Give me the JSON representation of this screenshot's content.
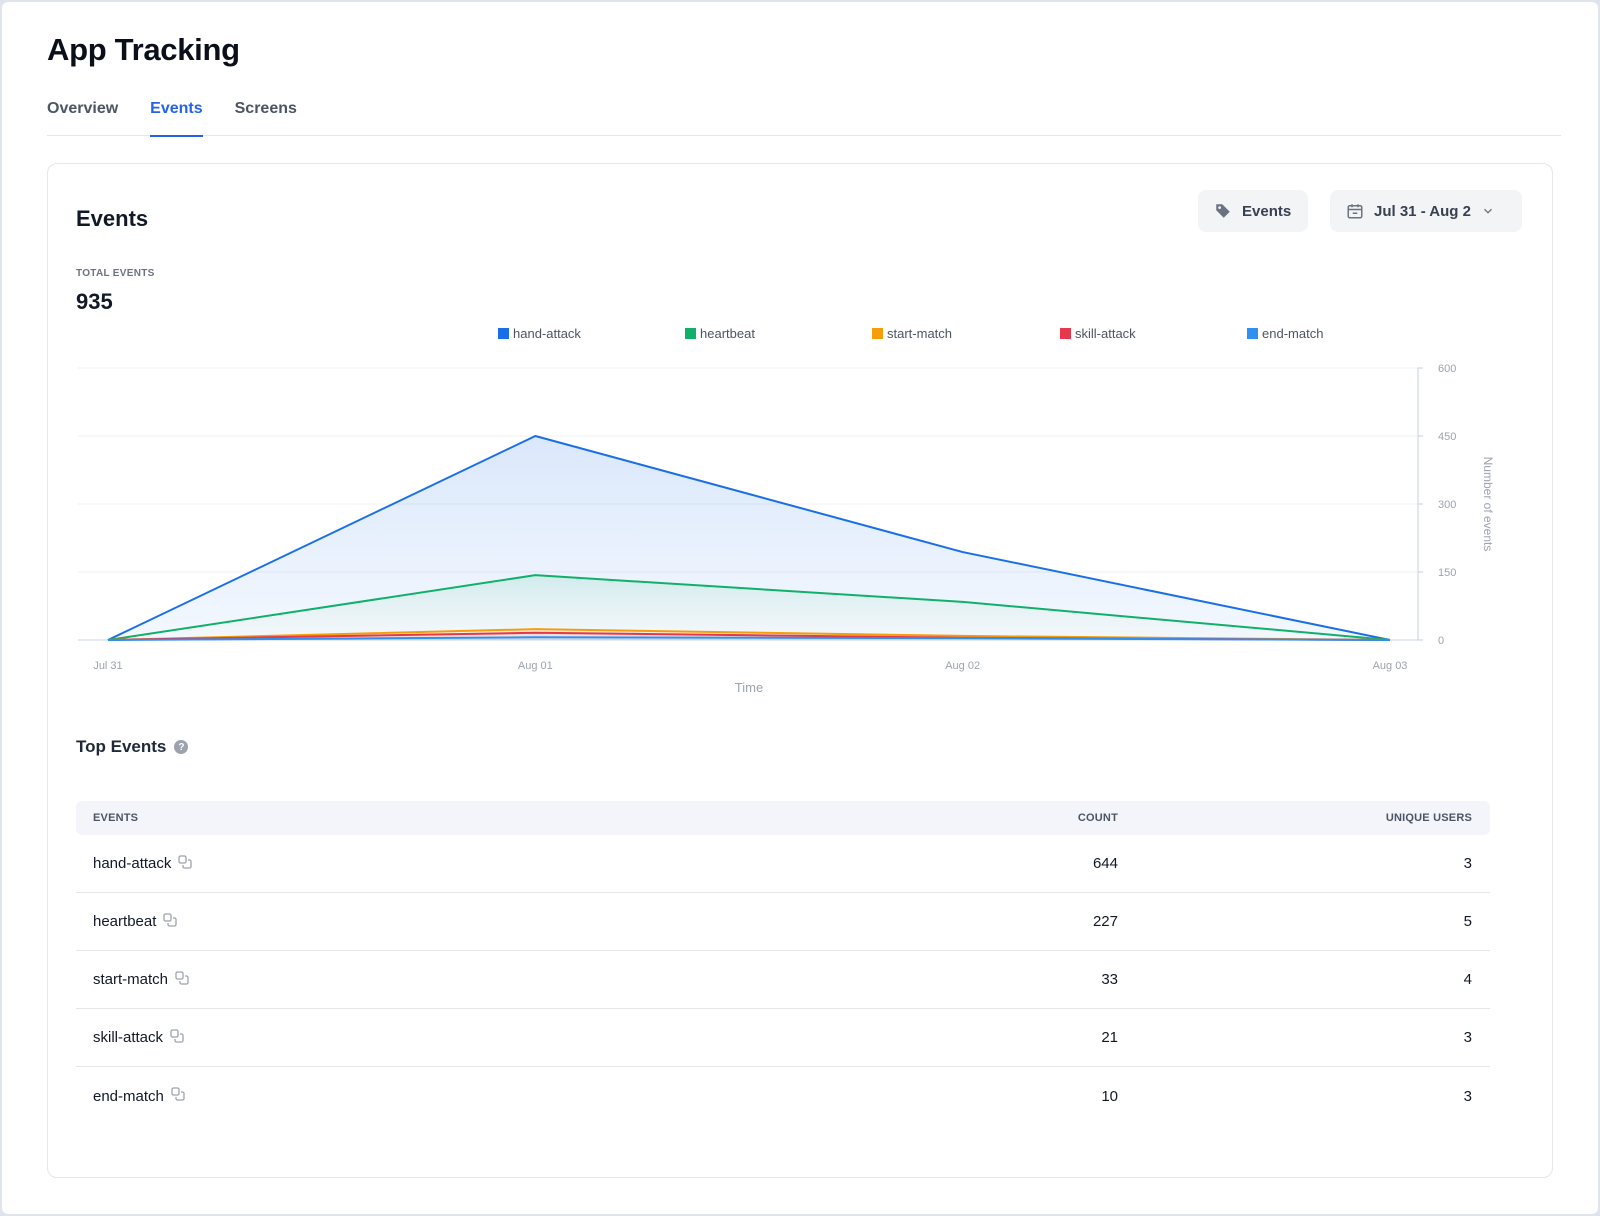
{
  "app": {
    "title": "App Tracking"
  },
  "tabs": [
    {
      "label": "Overview",
      "active": false
    },
    {
      "label": "Events",
      "active": true
    },
    {
      "label": "Screens",
      "active": false
    }
  ],
  "card": {
    "title": "Events",
    "events_button": "Events",
    "date_range": "Jul 31 - Aug 2",
    "total_label": "TOTAL EVENTS",
    "total_value": "935"
  },
  "chart_data": {
    "type": "area",
    "x": [
      "Jul 31",
      "Aug 01",
      "Aug 02",
      "Aug 03"
    ],
    "xlabel": "Time",
    "ylabel": "Number of events",
    "ylim": [
      0,
      600
    ],
    "yticks": [
      0,
      150,
      300,
      450,
      600
    ],
    "y_axis_side": "right",
    "legend_position": "top",
    "series": [
      {
        "name": "hand-attack",
        "color": "#1a6fe8",
        "values": [
          0,
          450,
          194,
          0
        ]
      },
      {
        "name": "heartbeat",
        "color": "#10b06b",
        "values": [
          0,
          143,
          84,
          0
        ]
      },
      {
        "name": "start-match",
        "color": "#f59e0b",
        "values": [
          0,
          24,
          9,
          0
        ]
      },
      {
        "name": "skill-attack",
        "color": "#e5384a",
        "values": [
          0,
          16,
          5,
          0
        ]
      },
      {
        "name": "end-match",
        "color": "#2f90f0",
        "values": [
          0,
          6,
          4,
          0
        ]
      }
    ]
  },
  "top_events": {
    "title": "Top Events",
    "columns": {
      "event": "EVENTS",
      "count": "COUNT",
      "users": "UNIQUE USERS"
    },
    "rows": [
      {
        "event": "hand-attack",
        "count": "644",
        "users": "3"
      },
      {
        "event": "heartbeat",
        "count": "227",
        "users": "5"
      },
      {
        "event": "start-match",
        "count": "33",
        "users": "4"
      },
      {
        "event": "skill-attack",
        "count": "21",
        "users": "3"
      },
      {
        "event": "end-match",
        "count": "10",
        "users": "3"
      }
    ]
  }
}
